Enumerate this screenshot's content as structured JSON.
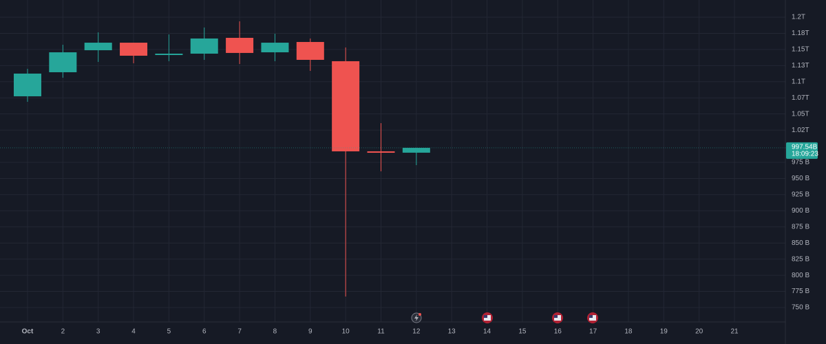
{
  "chart_data": {
    "type": "candlestick",
    "categories": [
      "Oct",
      "2",
      "3",
      "4",
      "5",
      "6",
      "7",
      "8",
      "9",
      "10",
      "11",
      "12",
      "13",
      "14",
      "15",
      "16",
      "17",
      "18",
      "19",
      "20",
      "21"
    ],
    "open": [
      1077.4,
      1114.7,
      1148.8,
      1160.5,
      1141.4,
      1143.5,
      1168.0,
      1145.6,
      1161.6,
      1131.8,
      992.1,
      990.0,
      null,
      null,
      null,
      null,
      null,
      null,
      null,
      null,
      null
    ],
    "high": [
      1120.0,
      1157.3,
      1176.5,
      1160.5,
      1173.3,
      1184.0,
      1193.6,
      1174.4,
      1167.0,
      1153.1,
      1035.8,
      997.6,
      null,
      null,
      null,
      null,
      null,
      null,
      null,
      null,
      null
    ],
    "low": [
      1068.8,
      1106.2,
      1130.7,
      1128.6,
      1131.8,
      1133.9,
      1127.5,
      1131.8,
      1116.8,
      767.1,
      961.1,
      970.7,
      null,
      null,
      null,
      null,
      null,
      null,
      null,
      null,
      null
    ],
    "close": [
      1112.6,
      1145.6,
      1160.5,
      1140.3,
      1143.5,
      1167.0,
      1144.6,
      1160.5,
      1133.9,
      992.1,
      989.9,
      997.54,
      null,
      null,
      null,
      null,
      null,
      null,
      null,
      null,
      null
    ],
    "up_color": "#26a69a",
    "down_color": "#ef5350",
    "ylim": [
      738,
      1212
    ],
    "yticks": [
      {
        "value": 1200,
        "label": "1.2T"
      },
      {
        "value": 1175,
        "label": "1.18T"
      },
      {
        "value": 1150,
        "label": "1.15T"
      },
      {
        "value": 1125,
        "label": "1.13T"
      },
      {
        "value": 1100,
        "label": "1.1T"
      },
      {
        "value": 1075,
        "label": "1.07T"
      },
      {
        "value": 1050,
        "label": "1.05T"
      },
      {
        "value": 1025,
        "label": "1.02T"
      },
      {
        "value": 975,
        "label": "975 B"
      },
      {
        "value": 950,
        "label": "950 B"
      },
      {
        "value": 925,
        "label": "925 B"
      },
      {
        "value": 900,
        "label": "900 B"
      },
      {
        "value": 875,
        "label": "875 B"
      },
      {
        "value": 850,
        "label": "850 B"
      },
      {
        "value": 825,
        "label": "825 B"
      },
      {
        "value": 800,
        "label": "800 B"
      },
      {
        "value": 775,
        "label": "775 B"
      },
      {
        "value": 750,
        "label": "750 B"
      }
    ],
    "last_price": {
      "value": 997.54,
      "label": "997.54B"
    },
    "countdown": "18:09:23",
    "grid": true
  }
}
